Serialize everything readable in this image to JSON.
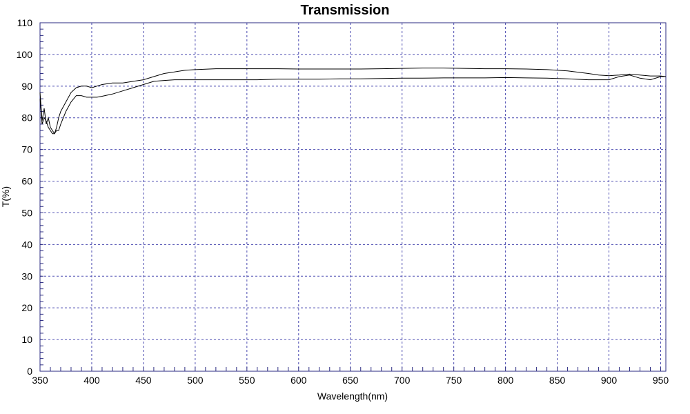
{
  "chart_data": {
    "type": "line",
    "title": "Transmission",
    "xlabel": "Wavelength(nm)",
    "ylabel": "T(%)",
    "xlim": [
      350,
      955
    ],
    "ylim": [
      0,
      110
    ],
    "xticks": [
      350,
      400,
      450,
      500,
      550,
      600,
      650,
      700,
      750,
      800,
      850,
      900,
      950
    ],
    "yticks": [
      0,
      10,
      20,
      30,
      40,
      50,
      60,
      70,
      80,
      90,
      100,
      110
    ],
    "grid": true,
    "series": [
      {
        "x": [
          350,
          352,
          354,
          356,
          358,
          360,
          362,
          364,
          366,
          368,
          370,
          375,
          380,
          385,
          390,
          395,
          400,
          405,
          410,
          420,
          430,
          440,
          450,
          460,
          470,
          480,
          490,
          500,
          520,
          540,
          560,
          580,
          600,
          620,
          640,
          660,
          680,
          700,
          720,
          740,
          760,
          780,
          800,
          820,
          840,
          860,
          880,
          890,
          900,
          910,
          920,
          930,
          940,
          950,
          955
        ],
        "values": [
          88,
          79,
          83,
          78,
          80,
          77,
          76,
          75,
          76,
          76,
          78,
          82,
          85,
          87,
          87,
          86.5,
          86.5,
          86.5,
          86.8,
          87.5,
          88.5,
          89.5,
          90.5,
          91.5,
          91.8,
          92,
          92,
          92,
          92,
          92,
          92,
          92.2,
          92.2,
          92.2,
          92.3,
          92.3,
          92.4,
          92.5,
          92.5,
          92.6,
          92.6,
          92.6,
          92.7,
          92.6,
          92.5,
          92.3,
          92,
          92,
          92,
          93,
          93.5,
          92.5,
          92,
          93,
          93
        ]
      },
      {
        "x": [
          350,
          352,
          354,
          356,
          358,
          360,
          362,
          364,
          366,
          368,
          370,
          375,
          380,
          385,
          390,
          395,
          400,
          405,
          410,
          420,
          430,
          440,
          450,
          460,
          470,
          480,
          490,
          500,
          520,
          540,
          560,
          580,
          600,
          620,
          640,
          660,
          680,
          700,
          720,
          740,
          760,
          780,
          800,
          820,
          840,
          860,
          880,
          890,
          900,
          910,
          920,
          930,
          940,
          950,
          955
        ],
        "values": [
          86,
          78,
          80,
          79,
          77,
          76,
          75,
          75,
          77,
          80,
          82,
          85,
          88,
          89.5,
          90,
          90,
          89.5,
          90,
          90.5,
          91,
          91,
          91.5,
          92,
          93,
          94,
          94.5,
          95,
          95.2,
          95.5,
          95.5,
          95.5,
          95.5,
          95.4,
          95.4,
          95.4,
          95.4,
          95.5,
          95.6,
          95.7,
          95.7,
          95.6,
          95.5,
          95.5,
          95.4,
          95.2,
          94.8,
          94,
          93.5,
          93.3,
          93.5,
          93.8,
          93.5,
          93.2,
          93.2,
          93
        ]
      }
    ]
  }
}
